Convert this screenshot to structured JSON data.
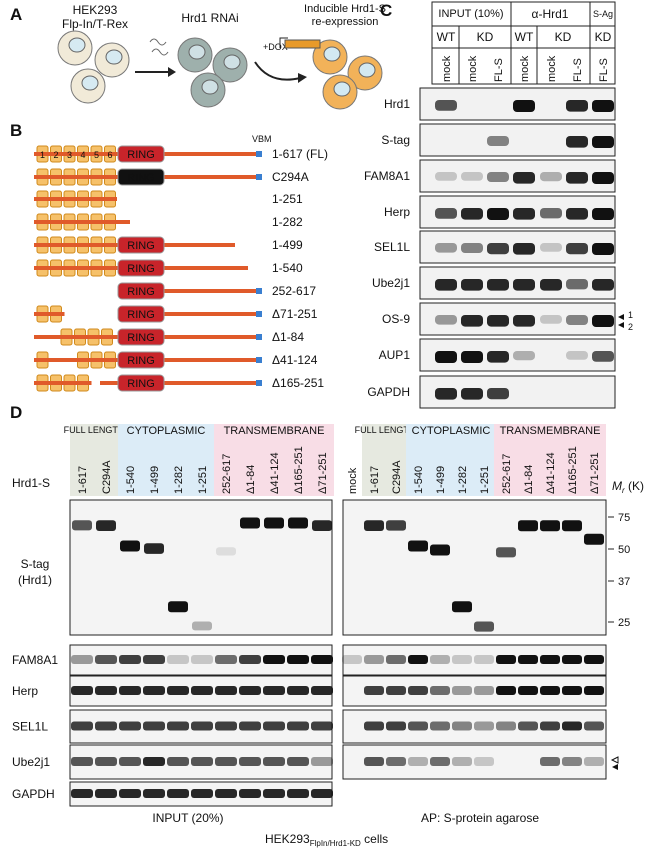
{
  "panel_a": {
    "label": "A",
    "cell_line": [
      "HEK293",
      "Flp-In/T-Rex"
    ],
    "rnai": "Hrd1 RNAi",
    "dox": "+DOX",
    "reexpression": [
      "Inducible Hrd1-S",
      "re-expression"
    ]
  },
  "panel_b": {
    "label": "B",
    "vbm": "VBM",
    "ring": "RING",
    "domains": [
      "1",
      "2",
      "3",
      "4",
      "5",
      "6"
    ],
    "constructs": [
      "1-617 (FL)",
      "C294A",
      "1-251",
      "1-282",
      "1-499",
      "1-540",
      "252-617",
      "Δ71-251",
      "Δ1-84",
      "Δ41-124",
      "Δ165-251"
    ]
  },
  "panel_c": {
    "label": "C",
    "groups": [
      "INPUT (10%)",
      "α-Hrd1",
      "S-Ag"
    ],
    "genotypes": [
      "WT",
      "KD",
      "WT",
      "KD",
      "KD"
    ],
    "lanes": [
      "mock",
      "mock",
      "FL-S",
      "mock",
      "mock",
      "FL-S",
      "FL-S"
    ],
    "blots": [
      "Hrd1",
      "S-tag",
      "FAM8A1",
      "Herp",
      "SEL1L",
      "Ube2j1",
      "OS-9",
      "AUP1",
      "GAPDH"
    ],
    "os9_bands": [
      "1",
      "2"
    ]
  },
  "panel_d": {
    "label": "D",
    "row_title": "Hrd1-S",
    "groups": [
      "FULL LENGTH",
      "CYTOPLASMIC",
      "TRANSMEMBRANE"
    ],
    "lanes_input": [
      "1-617",
      "C294A",
      "1-540",
      "1-499",
      "1-282",
      "1-251",
      "252-617",
      "Δ1-84",
      "Δ41-124",
      "Δ165-251",
      "Δ71-251"
    ],
    "lanes_ap": [
      "mock",
      "1-617",
      "C294A",
      "1-540",
      "1-499",
      "1-282",
      "1-251",
      "252-617",
      "Δ1-84",
      "Δ41-124",
      "Δ165-251",
      "Δ71-251"
    ],
    "blots": [
      "S-tag",
      "(Hrd1)",
      "FAM8A1",
      "Herp",
      "SEL1L",
      "Ube2j1",
      "GAPDH"
    ],
    "mr_label": {
      "symbol": "M",
      "subscript": "r",
      "unit": "(K)"
    },
    "markers": [
      "75",
      "50",
      "37",
      "25"
    ],
    "footer_input": "INPUT (20%)",
    "footer_ap": "AP: S-protein agarose",
    "cells": {
      "name": "HEK293",
      "subscript": "FlpIn/Hrd1-KD",
      "suffix": "cells"
    }
  }
}
